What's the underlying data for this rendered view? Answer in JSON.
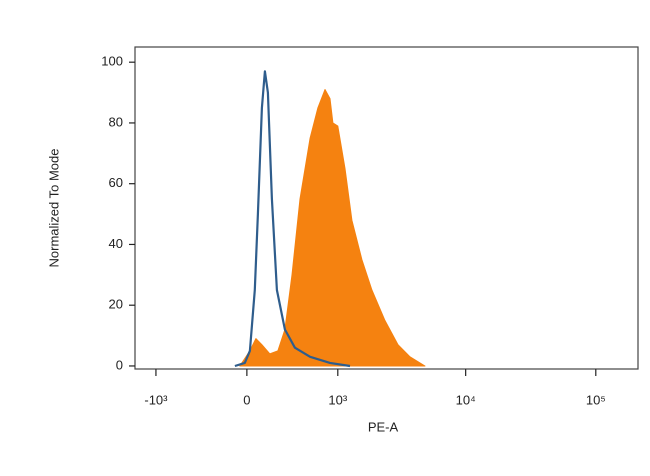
{
  "chart_data": {
    "type": "histogram-overlay",
    "x_label": "PE-A",
    "y_label": "Normalized To Mode",
    "xscale": "biexponential",
    "xlim": [
      -1480,
      211000
    ],
    "ylim": [
      -1,
      105
    ],
    "xticks": [
      {
        "value": -1000,
        "label": "-10³"
      },
      0,
      {
        "value": 1000,
        "label": "10³"
      },
      {
        "value": 10000,
        "label": "10⁴"
      },
      {
        "value": 100000,
        "label": "10⁵"
      }
    ],
    "yticks": [
      0,
      20,
      40,
      60,
      80,
      100
    ],
    "series": [
      {
        "color": "#f58210",
        "fill": true,
        "x": [
          -52,
          22,
          67,
          112,
          174,
          241,
          302,
          369,
          452,
          570,
          673,
          779,
          859,
          909,
          1000,
          1146,
          1305,
          1568,
          1882,
          2377,
          3006,
          3725,
          4860
        ],
        "values": [
          0,
          5,
          9,
          7,
          4,
          5,
          12,
          30,
          55,
          75,
          85,
          91,
          88,
          80,
          79,
          65,
          48,
          35,
          25,
          15,
          7,
          3,
          0
        ]
      },
      {
        "color": "#2f5d8c",
        "fill": false,
        "x": [
          -89,
          -15,
          22,
          59,
          82,
          112,
          135,
          159,
          191,
          232,
          302,
          399,
          570,
          859,
          1259
        ],
        "values": [
          0,
          1,
          5,
          25,
          50,
          85,
          97,
          90,
          55,
          25,
          12,
          6,
          3,
          1,
          0
        ]
      }
    ]
  }
}
